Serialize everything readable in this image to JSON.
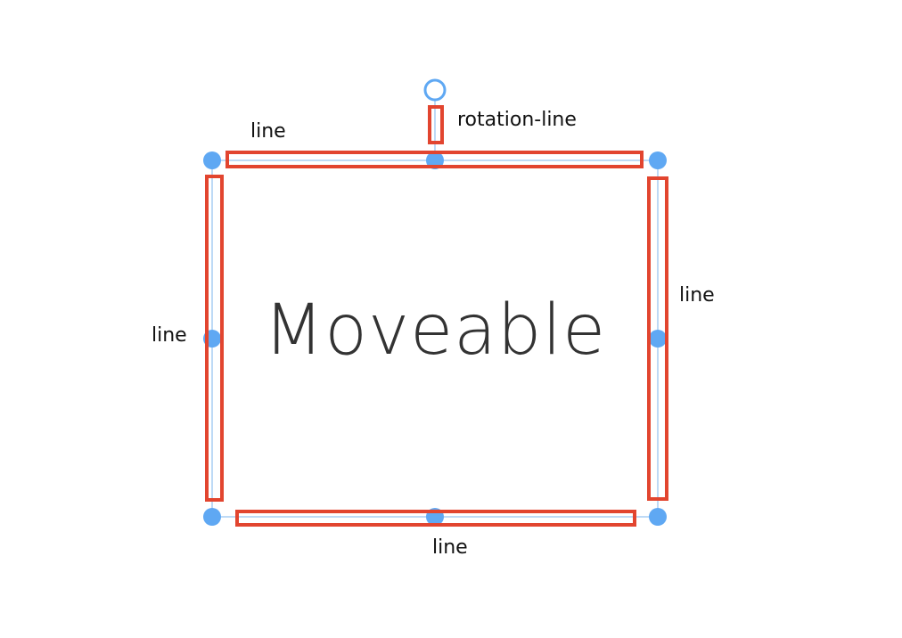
{
  "target": {
    "text": "Moveable"
  },
  "callouts": {
    "top_line": "line",
    "rotation_line": "rotation-line",
    "left_line": "line",
    "right_line": "line",
    "bottom_line": "line"
  },
  "colors": {
    "control_blue": "#5fa8f3",
    "guide_line": "#7eb6ee",
    "highlight_red": "#e2452f",
    "text_dark": "#333333"
  }
}
